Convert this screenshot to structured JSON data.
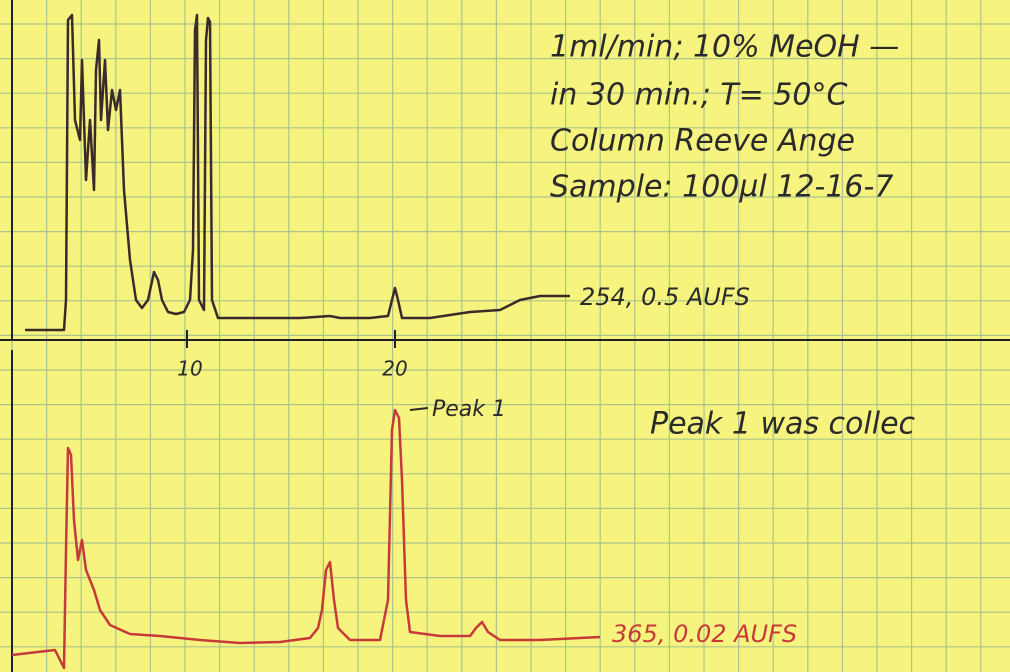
{
  "notes": {
    "lines": [
      "1ml/min; 10% MeOH —",
      "in 30 min.; T= 50°C",
      "Column Reeve Ange",
      "Sample: 100µl 12-16-7"
    ]
  },
  "upper_trace": {
    "label": "254, 0.5 AUFS"
  },
  "axis": {
    "ticks": [
      10,
      20
    ]
  },
  "lower_trace": {
    "annotation": "Peak 1",
    "label": "365, 0.02 AUFS",
    "note": "Peak 1 was collec"
  }
}
